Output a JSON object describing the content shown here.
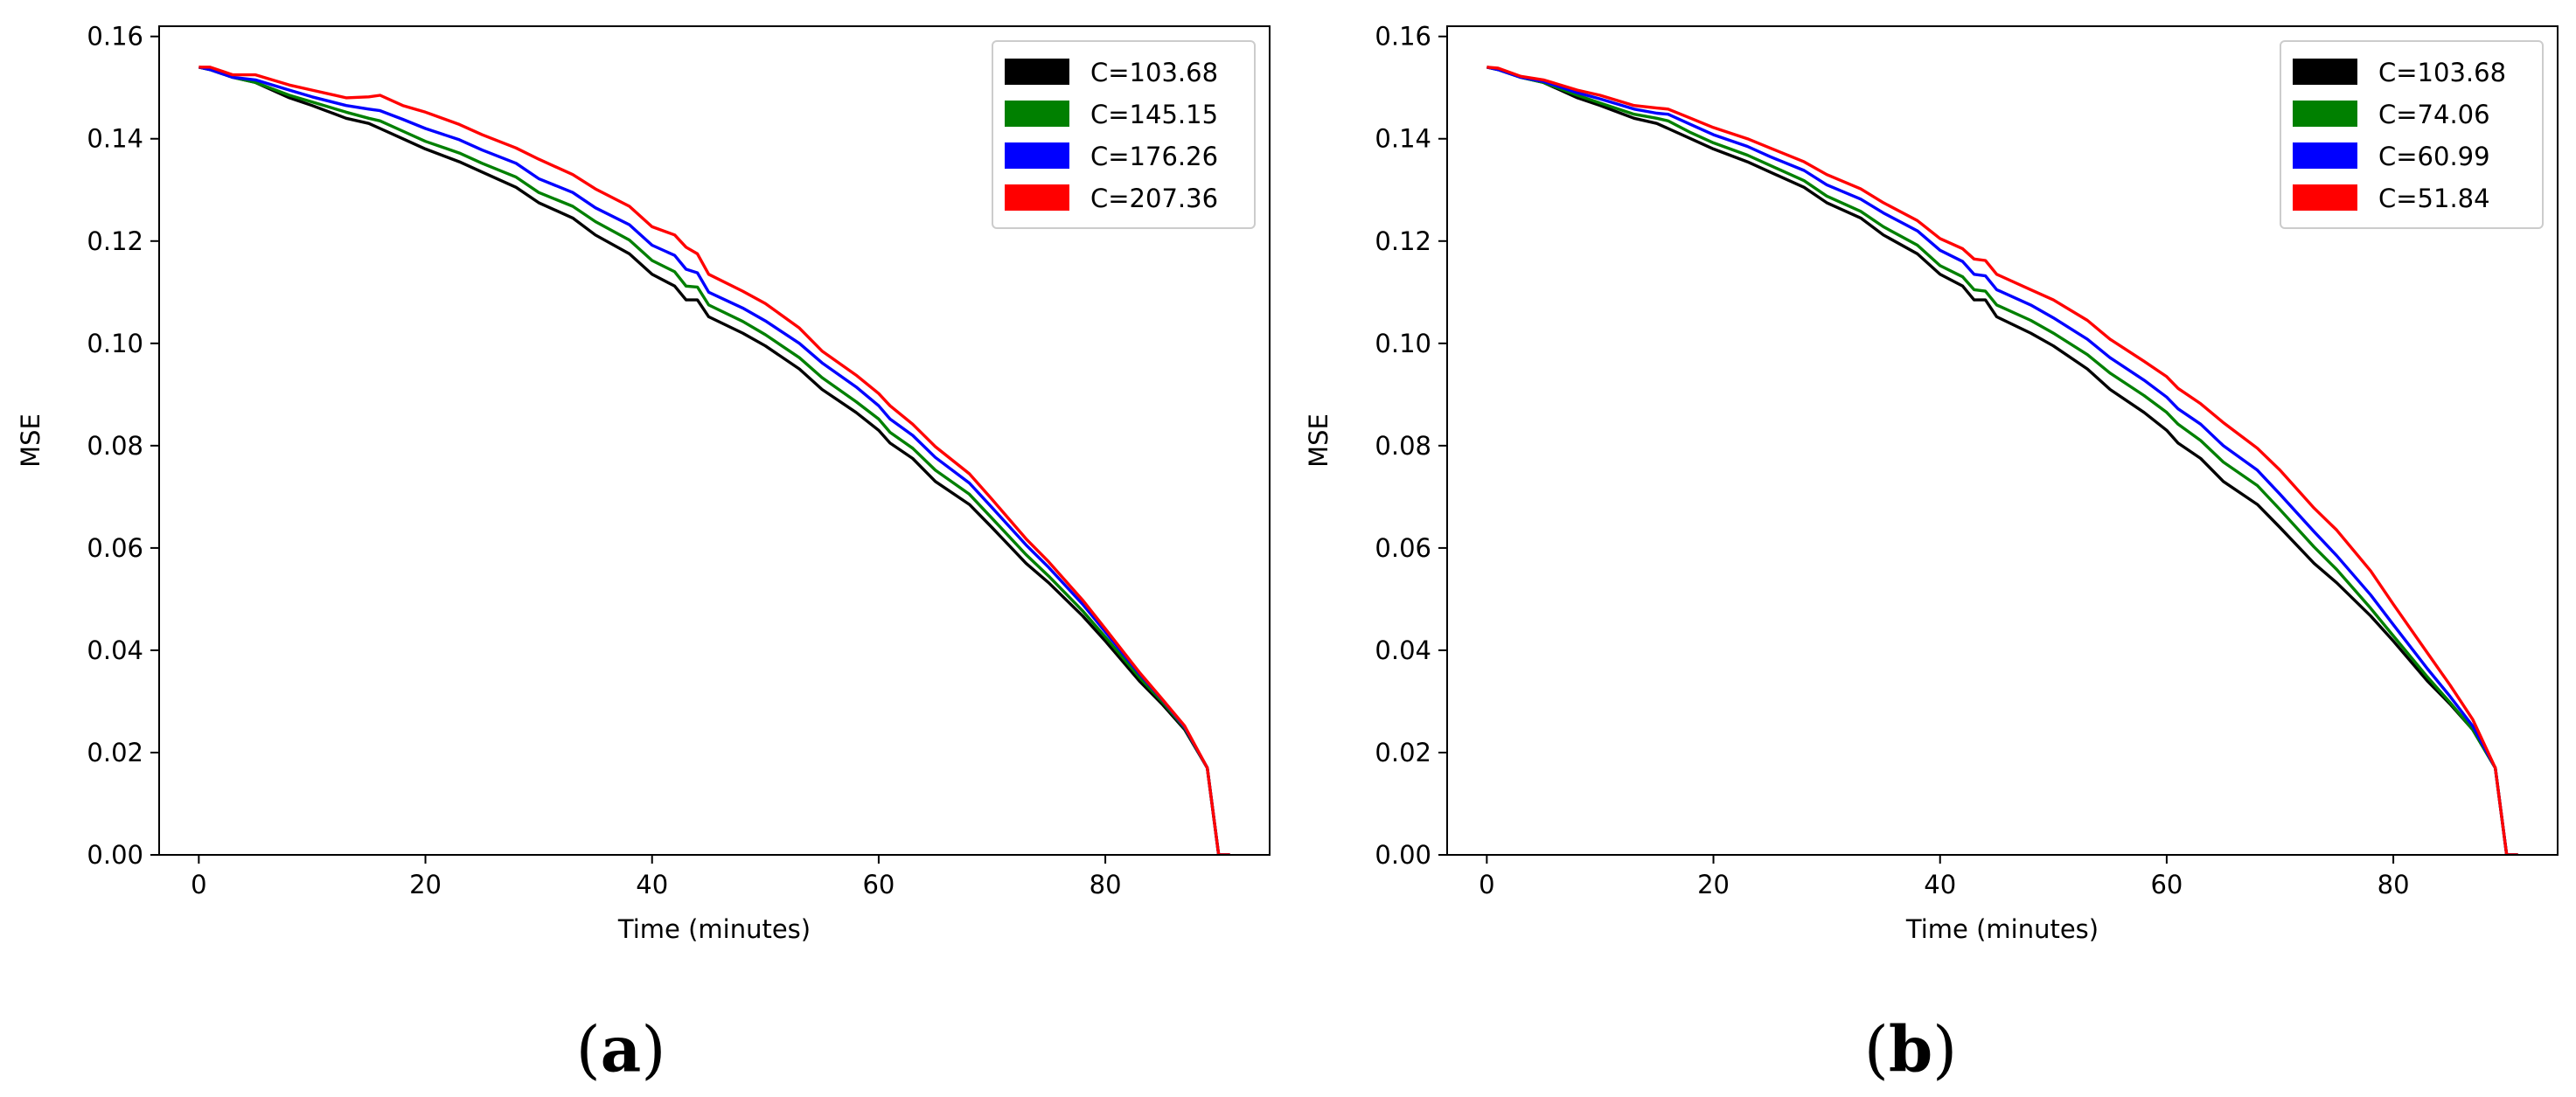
{
  "captions": {
    "a": "a",
    "b": "b"
  },
  "colors": {
    "black": "#000000",
    "green": "#008000",
    "blue": "#0000ff",
    "red": "#ff0000"
  },
  "chart_data": [
    {
      "type": "line",
      "panel": "a",
      "xlabel": "Time (minutes)",
      "ylabel": "MSE",
      "xlim": [
        -3.5,
        94.5
      ],
      "ylim": [
        0,
        0.162
      ],
      "xticks": [
        "0",
        "20",
        "40",
        "60",
        "80"
      ],
      "xtick_values": [
        0,
        20,
        40,
        60,
        80
      ],
      "yticks": [
        "0.00",
        "0.02",
        "0.04",
        "0.06",
        "0.08",
        "0.10",
        "0.12",
        "0.14",
        "0.16"
      ],
      "ytick_values": [
        0,
        0.02,
        0.04,
        0.06,
        0.08,
        0.1,
        0.12,
        0.14,
        0.16
      ],
      "legend_position": "top-right",
      "x": [
        0,
        1,
        3,
        5,
        8,
        10,
        13,
        15,
        16,
        18,
        20,
        23,
        25,
        28,
        30,
        33,
        35,
        38,
        40,
        42,
        43,
        44,
        45,
        48,
        50,
        53,
        55,
        58,
        60,
        61,
        63,
        65,
        68,
        70,
        73,
        75,
        78,
        80,
        83,
        85,
        87,
        89,
        90,
        91
      ],
      "series": [
        {
          "name": "C=103.68",
          "color": "#000000",
          "values": [
            0.154,
            0.1535,
            0.152,
            0.151,
            0.148,
            0.1465,
            0.144,
            0.143,
            0.142,
            0.14,
            0.138,
            0.1355,
            0.1335,
            0.1305,
            0.1275,
            0.1245,
            0.1212,
            0.1175,
            0.1135,
            0.1112,
            0.1085,
            0.1085,
            0.1052,
            0.102,
            0.0995,
            0.095,
            0.091,
            0.0865,
            0.083,
            0.0805,
            0.0775,
            0.073,
            0.0685,
            0.064,
            0.057,
            0.0532,
            0.0467,
            0.0418,
            0.034,
            0.0295,
            0.0245,
            0.017,
            0.0,
            0.0
          ]
        },
        {
          "name": "C=145.15",
          "color": "#008000",
          "values": [
            0.154,
            0.1535,
            0.152,
            0.151,
            0.1485,
            0.1472,
            0.1452,
            0.144,
            0.1435,
            0.1415,
            0.1395,
            0.1372,
            0.1352,
            0.1325,
            0.1295,
            0.1268,
            0.1238,
            0.1202,
            0.1162,
            0.114,
            0.1112,
            0.111,
            0.1075,
            0.1043,
            0.1017,
            0.0972,
            0.0933,
            0.0886,
            0.0852,
            0.0826,
            0.0795,
            0.0752,
            0.0705,
            0.0658,
            0.0587,
            0.0545,
            0.0477,
            0.0426,
            0.0347,
            0.03,
            0.0248,
            0.017,
            0.0,
            0.0
          ]
        },
        {
          "name": "C=176.26",
          "color": "#0000ff",
          "values": [
            0.154,
            0.1535,
            0.152,
            0.1515,
            0.1495,
            0.1482,
            0.1465,
            0.1458,
            0.1455,
            0.1438,
            0.142,
            0.1398,
            0.1378,
            0.1352,
            0.1322,
            0.1295,
            0.1265,
            0.1232,
            0.1192,
            0.1172,
            0.1145,
            0.1138,
            0.11,
            0.1069,
            0.1044,
            0.1,
            0.0962,
            0.0915,
            0.0878,
            0.0852,
            0.082,
            0.0777,
            0.0727,
            0.0679,
            0.0606,
            0.0562,
            0.049,
            0.0436,
            0.0354,
            0.0304,
            0.025,
            0.017,
            0.0,
            0.0
          ]
        },
        {
          "name": "C=207.36",
          "color": "#ff0000",
          "values": [
            0.154,
            0.154,
            0.1525,
            0.1525,
            0.1505,
            0.1495,
            0.148,
            0.1482,
            0.1485,
            0.1465,
            0.1452,
            0.1428,
            0.1408,
            0.1382,
            0.136,
            0.133,
            0.1302,
            0.1268,
            0.1228,
            0.1212,
            0.1188,
            0.1175,
            0.1135,
            0.1102,
            0.1078,
            0.103,
            0.0985,
            0.0938,
            0.0902,
            0.0878,
            0.0842,
            0.0798,
            0.0745,
            0.0695,
            0.0618,
            0.0573,
            0.0498,
            0.0442,
            0.0357,
            0.0305,
            0.0252,
            0.017,
            0.0,
            0.0
          ]
        }
      ]
    },
    {
      "type": "line",
      "panel": "b",
      "xlabel": "Time (minutes)",
      "ylabel": "MSE",
      "xlim": [
        -3.5,
        94.5
      ],
      "ylim": [
        0,
        0.162
      ],
      "xticks": [
        "0",
        "20",
        "40",
        "60",
        "80"
      ],
      "xtick_values": [
        0,
        20,
        40,
        60,
        80
      ],
      "yticks": [
        "0.00",
        "0.02",
        "0.04",
        "0.06",
        "0.08",
        "0.10",
        "0.12",
        "0.14",
        "0.16"
      ],
      "ytick_values": [
        0,
        0.02,
        0.04,
        0.06,
        0.08,
        0.1,
        0.12,
        0.14,
        0.16
      ],
      "legend_position": "top-right",
      "x": [
        0,
        1,
        3,
        5,
        8,
        10,
        13,
        15,
        16,
        18,
        20,
        23,
        25,
        28,
        30,
        33,
        35,
        38,
        40,
        42,
        43,
        44,
        45,
        48,
        50,
        53,
        55,
        58,
        60,
        61,
        63,
        65,
        68,
        70,
        73,
        75,
        78,
        80,
        83,
        85,
        87,
        89,
        90,
        91
      ],
      "series": [
        {
          "name": "C=103.68",
          "color": "#000000",
          "values": [
            0.154,
            0.1535,
            0.152,
            0.151,
            0.148,
            0.1465,
            0.144,
            0.143,
            0.142,
            0.14,
            0.138,
            0.1355,
            0.1335,
            0.1305,
            0.1275,
            0.1245,
            0.1212,
            0.1175,
            0.1135,
            0.1112,
            0.1085,
            0.1085,
            0.1052,
            0.102,
            0.0995,
            0.095,
            0.091,
            0.0865,
            0.083,
            0.0805,
            0.0775,
            0.073,
            0.0685,
            0.064,
            0.057,
            0.0532,
            0.0467,
            0.0418,
            0.034,
            0.0295,
            0.0245,
            0.017,
            0.0,
            0.0
          ]
        },
        {
          "name": "C=74.06",
          "color": "#008000",
          "values": [
            0.154,
            0.1535,
            0.152,
            0.151,
            0.1485,
            0.147,
            0.1448,
            0.144,
            0.1435,
            0.1412,
            0.1392,
            0.1368,
            0.1348,
            0.1318,
            0.1288,
            0.1258,
            0.1228,
            0.1192,
            0.1152,
            0.113,
            0.1105,
            0.1102,
            0.1075,
            0.1045,
            0.102,
            0.0978,
            0.0942,
            0.0898,
            0.0865,
            0.0842,
            0.081,
            0.0768,
            0.0722,
            0.0675,
            0.0602,
            0.0558,
            0.0482,
            0.0428,
            0.0348,
            0.0298,
            0.0245,
            0.017,
            0.0,
            0.0
          ]
        },
        {
          "name": "C=60.99",
          "color": "#0000ff",
          "values": [
            0.154,
            0.1535,
            0.152,
            0.1512,
            0.149,
            0.1478,
            0.1458,
            0.145,
            0.1448,
            0.1428,
            0.1408,
            0.1385,
            0.1365,
            0.1338,
            0.131,
            0.1282,
            0.1255,
            0.122,
            0.1182,
            0.116,
            0.1135,
            0.1132,
            0.1105,
            0.1075,
            0.105,
            0.1008,
            0.0972,
            0.0928,
            0.0895,
            0.0872,
            0.0842,
            0.08,
            0.0752,
            0.0705,
            0.0632,
            0.0585,
            0.0508,
            0.045,
            0.0364,
            0.031,
            0.0252,
            0.017,
            0.0,
            0.0
          ]
        },
        {
          "name": "C=51.84",
          "color": "#ff0000",
          "values": [
            0.154,
            0.1538,
            0.1522,
            0.1515,
            0.1495,
            0.1485,
            0.1465,
            0.146,
            0.1458,
            0.144,
            0.1422,
            0.14,
            0.1382,
            0.1355,
            0.133,
            0.1302,
            0.1275,
            0.124,
            0.1205,
            0.1185,
            0.1165,
            0.1162,
            0.1135,
            0.1105,
            0.1085,
            0.1045,
            0.1008,
            0.0965,
            0.0935,
            0.0912,
            0.0882,
            0.0845,
            0.0795,
            0.0752,
            0.0678,
            0.0635,
            0.0555,
            0.049,
            0.0395,
            0.0332,
            0.0265,
            0.017,
            0.0,
            0.0
          ]
        }
      ]
    }
  ]
}
